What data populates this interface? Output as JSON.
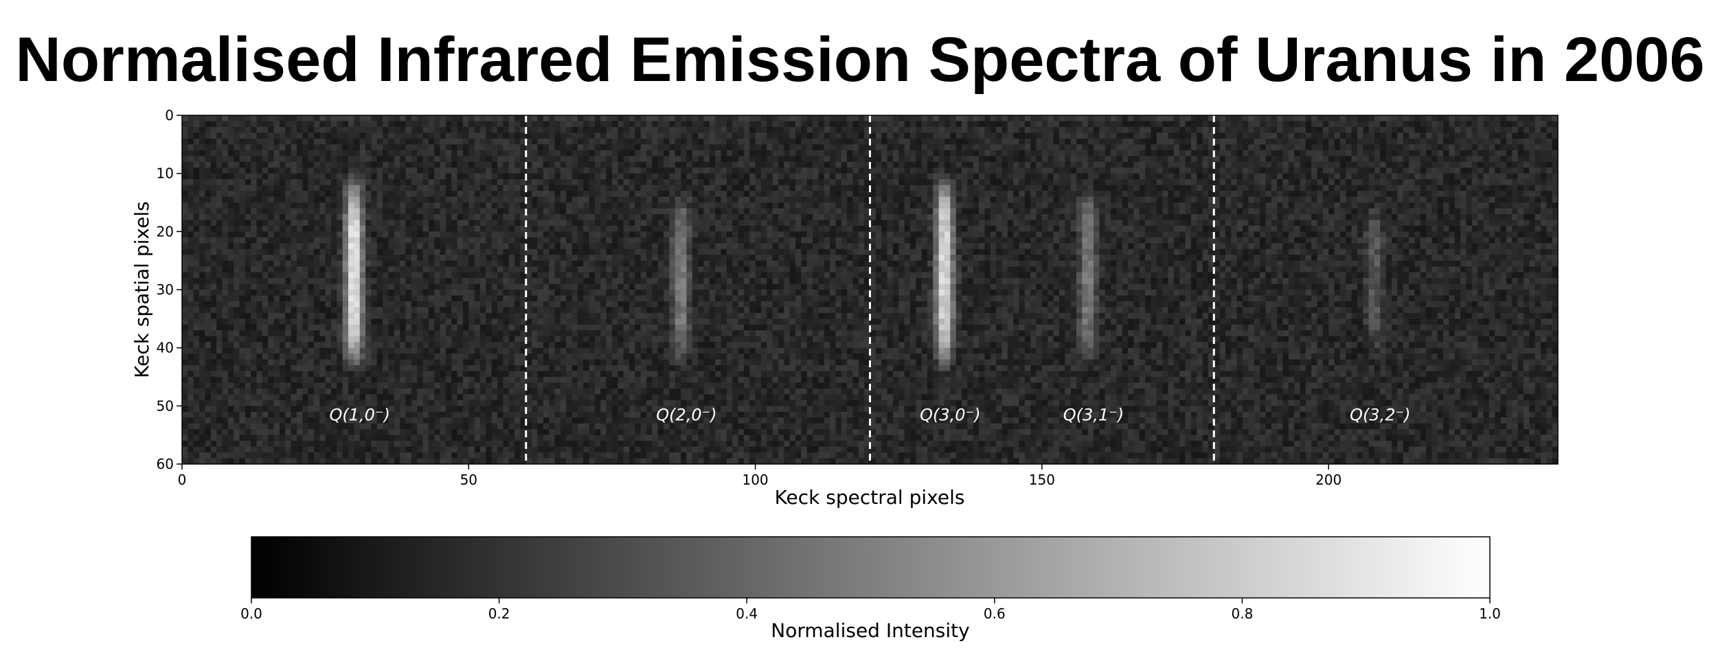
{
  "title": "Normalised Infrared Emission Spectra of Uranus in 2006",
  "chart_data": {
    "type": "heatmap",
    "title": "Normalised Infrared Emission Spectra of Uranus in 2006",
    "xlabel": "Keck spectral pixels",
    "ylabel": "Keck spatial pixels",
    "xlim": [
      0,
      240
    ],
    "ylim": [
      60,
      0
    ],
    "xticks": [
      0,
      50,
      100,
      150,
      200
    ],
    "yticks": [
      0,
      10,
      20,
      30,
      40,
      50,
      60
    ],
    "colormap": "grayscale",
    "grid": false,
    "separators_x": [
      60,
      120,
      180
    ],
    "lines": [
      {
        "label": "Q(1,0⁻)",
        "x_center": 30,
        "y_range": [
          10,
          44
        ],
        "peak_intensity": 0.95
      },
      {
        "label": "Q(2,0⁻)",
        "x_center": 87,
        "y_range": [
          13,
          43
        ],
        "peak_intensity": 0.5
      },
      {
        "label": "Q(3,0⁻)",
        "x_center": 133,
        "y_range": [
          10,
          44
        ],
        "peak_intensity": 0.9
      },
      {
        "label": "Q(3,1⁻)",
        "x_center": 158,
        "y_range": [
          12,
          43
        ],
        "peak_intensity": 0.5
      },
      {
        "label": "Q(3,2⁻)",
        "x_center": 208,
        "y_range": [
          15,
          41
        ],
        "peak_intensity": 0.35
      }
    ],
    "colorbar": {
      "label": "Normalised Intensity",
      "range": [
        0.0,
        1.0
      ],
      "ticks": [
        "0.0",
        "0.2",
        "0.4",
        "0.6",
        "0.8",
        "1.0"
      ]
    }
  }
}
